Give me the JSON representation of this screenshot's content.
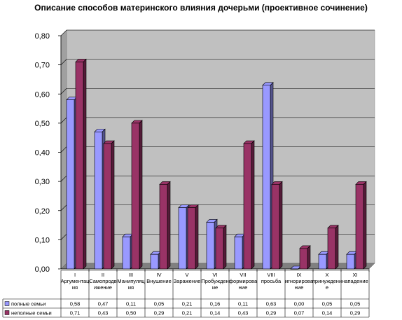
{
  "chart_data": {
    "type": "bar",
    "title": "Описание способов материнского влияния дочерьми (проективное сочинение)",
    "categories": [
      [
        "I",
        "Аргументац",
        "ия"
      ],
      [
        "II",
        "Самопродв",
        "ижение"
      ],
      [
        "III",
        "Манипуляц",
        "ия"
      ],
      [
        "IV",
        "Внушение"
      ],
      [
        "V",
        "Заражение"
      ],
      [
        "VI",
        "Пробужден",
        "ие"
      ],
      [
        "VII",
        "формирова",
        "ние"
      ],
      [
        "VIII",
        "просьба"
      ],
      [
        "IX",
        "игнорирова",
        "ние"
      ],
      [
        "X",
        "принуждени",
        "е"
      ],
      [
        "XI",
        "нападение"
      ]
    ],
    "series": [
      {
        "name": "полные семьи",
        "color": "#9999ff",
        "values": [
          0.58,
          0.47,
          0.11,
          0.05,
          0.21,
          0.16,
          0.11,
          0.63,
          0.0,
          0.05,
          0.05
        ],
        "labels": [
          "0,58",
          "0,47",
          "0,11",
          "0,05",
          "0,21",
          "0,16",
          "0,11",
          "0,63",
          "0,00",
          "0,05",
          "0,05"
        ]
      },
      {
        "name": "неполные семьи",
        "color": "#993366",
        "values": [
          0.71,
          0.43,
          0.5,
          0.29,
          0.21,
          0.14,
          0.43,
          0.29,
          0.07,
          0.14,
          0.29
        ],
        "labels": [
          "0,71",
          "0,43",
          "0,50",
          "0,29",
          "0,21",
          "0,14",
          "0,43",
          "0,29",
          "0,07",
          "0,14",
          "0,29"
        ]
      }
    ],
    "ylim": [
      0,
      0.8
    ],
    "y_ticks": [
      "0,00",
      "0,10",
      "0,20",
      "0,30",
      "0,40",
      "0,50",
      "0,60",
      "0,70",
      "0,80"
    ],
    "grid": true,
    "legend": "data-table"
  }
}
